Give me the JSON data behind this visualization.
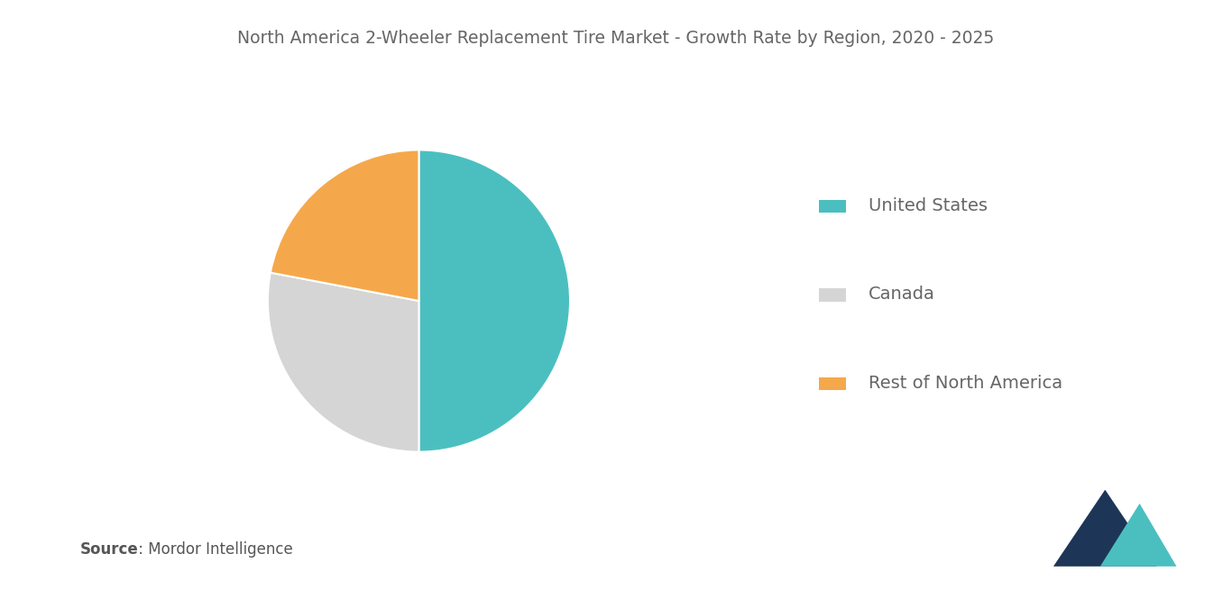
{
  "title": "North America 2-Wheeler Replacement Tire Market - Growth Rate by Region, 2020 - 2025",
  "slices": [
    {
      "label": "United States",
      "value": 50,
      "color": "#4bbfc0"
    },
    {
      "label": "Canada",
      "value": 28,
      "color": "#d5d5d5"
    },
    {
      "label": "Rest of North America",
      "value": 22,
      "color": "#f5a84b"
    }
  ],
  "source_bold": "Source",
  "source_rest": " : Mordor Intelligence",
  "background_color": "#ffffff",
  "title_color": "#666666",
  "title_fontsize": 13.5,
  "legend_fontsize": 14,
  "source_fontsize": 12,
  "startangle": 90,
  "logo_left_color": "#1d3557",
  "logo_right_color": "#4bbfc0"
}
